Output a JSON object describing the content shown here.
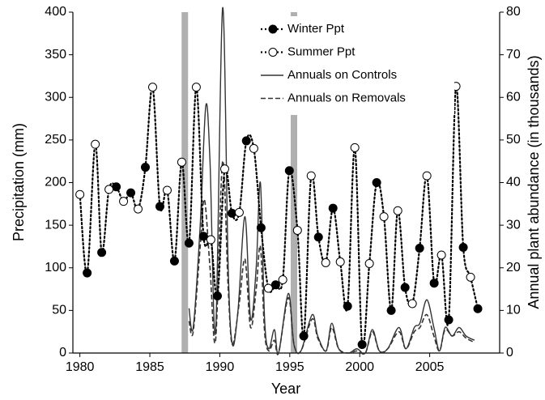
{
  "chart_data": {
    "type": "line",
    "xlabel": "Year",
    "ylabel": "Precipitation (mm)",
    "y2label": "Annual plant abundance (in thousands)",
    "xlim": [
      1979.5,
      2010
    ],
    "xticks": [
      1980,
      1985,
      1990,
      1995,
      2000,
      2005
    ],
    "ylim": [
      0,
      400
    ],
    "yticks": [
      0,
      50,
      100,
      150,
      200,
      250,
      300,
      350,
      400
    ],
    "y2lim": [
      0,
      80
    ],
    "y2ticks": [
      0,
      10,
      20,
      30,
      40,
      50,
      60,
      70,
      80
    ],
    "grid": false,
    "legend": "top",
    "vertical_bars": {
      "x": [
        1987.5,
        1995.3
      ],
      "color": "#b0b0b0"
    },
    "series": [
      {
        "name": "Winter Ppt",
        "color": "#000000",
        "style": "dotted",
        "marker": "filled",
        "x": [
          1980.52,
          1981.56,
          1982.6,
          1983.64,
          1984.68,
          1985.72,
          1986.76,
          1987.8,
          1988.84,
          1989.83,
          1990.87,
          1991.9,
          1992.95,
          1993.99,
          1994.97,
          1996.0,
          1997.05,
          1998.09,
          1999.13,
          2000.17,
          2001.21,
          2002.25,
          2003.24,
          2004.28,
          2005.32,
          2006.36,
          2007.4,
          2008.44
        ],
        "values": [
          94,
          118,
          195,
          188,
          218,
          172,
          108,
          129,
          137,
          67,
          164,
          249,
          147,
          80,
          214,
          20,
          136,
          170,
          55,
          10,
          200,
          50,
          77,
          123,
          82,
          39,
          124,
          52
        ]
      },
      {
        "name": "Summer Ppt",
        "color": "#000000",
        "style": "dotted",
        "marker": "open",
        "x": [
          1980.0,
          1981.1,
          1982.08,
          1983.12,
          1984.16,
          1985.2,
          1986.24,
          1987.28,
          1988.32,
          1989.36,
          1990.35,
          1991.39,
          1992.43,
          1993.47,
          1994.5,
          1995.55,
          1996.53,
          1997.57,
          1998.61,
          1999.65,
          2000.69,
          2001.73,
          2002.72,
          2003.76,
          2004.8,
          2005.84,
          2006.88,
          2007.92
        ],
        "values": [
          186,
          245,
          192,
          178,
          169,
          312,
          191,
          224,
          312,
          133,
          216,
          165,
          240,
          76,
          86,
          144,
          208,
          106,
          107,
          241,
          105,
          160,
          167,
          58,
          208,
          115,
          313,
          89
        ]
      },
      {
        "name": "Annuals on Controls",
        "color": "#333333",
        "style": "solid",
        "axis": "y2",
        "x": [
          1987.8,
          1988.1,
          1988.6,
          1989.0,
          1989.3,
          1989.7,
          1990.2,
          1990.6,
          1990.9,
          1991.3,
          1991.8,
          1992.2,
          1992.6,
          1992.9,
          1993.2,
          1993.5,
          1993.9,
          1994.2,
          1994.9,
          1995.3,
          1995.8,
          1996.6,
          1997.0,
          1997.6,
          1998.0,
          1998.5,
          1999.2,
          1999.8,
          2000.4,
          2000.9,
          2001.4,
          2002.0,
          2002.8,
          2003.3,
          2003.9,
          2004.3,
          2004.8,
          2005.3,
          2005.7,
          2006.1,
          2006.6,
          2007.1,
          2007.6,
          2008.2
        ],
        "values": [
          10.5,
          6,
          30,
          58,
          45,
          5,
          81,
          20,
          2,
          10,
          32,
          8,
          20,
          40,
          8,
          1,
          5.5,
          0,
          14,
          2,
          0.5,
          9,
          4,
          0.5,
          7,
          1,
          0,
          1,
          0,
          5.5,
          0.5,
          1,
          6,
          1,
          6,
          7,
          12.5,
          6,
          0.5,
          6,
          4,
          6,
          4,
          3
        ]
      },
      {
        "name": "Annuals on Removals",
        "color": "#333333",
        "style": "dashed",
        "axis": "y2",
        "x": [
          1987.8,
          1988.1,
          1988.6,
          1988.9,
          1989.3,
          1989.7,
          1990.2,
          1990.6,
          1990.9,
          1991.4,
          1991.8,
          1992.2,
          1992.6,
          1992.9,
          1993.2,
          1993.5,
          1993.9,
          1994.2,
          1994.9,
          1995.3,
          1995.8,
          1996.6,
          1997.0,
          1997.6,
          1998.0,
          1998.5,
          1999.2,
          1999.8,
          2000.4,
          2000.9,
          2001.4,
          2002.0,
          2002.8,
          2003.3,
          2003.9,
          2004.3,
          2004.8,
          2005.3,
          2005.7,
          2006.1,
          2006.6,
          2007.1,
          2007.6,
          2008.2
        ],
        "values": [
          7.5,
          5,
          25,
          36,
          20,
          3,
          45,
          15,
          2,
          12,
          22,
          6,
          15,
          25,
          5,
          0.5,
          3,
          0,
          13,
          2,
          0.5,
          8,
          3.5,
          0.5,
          6,
          1,
          0,
          0.5,
          0,
          5,
          0.5,
          1,
          5,
          1,
          5,
          6,
          9,
          4,
          0.5,
          5.5,
          4,
          5,
          3.5,
          2.5
        ]
      }
    ]
  }
}
